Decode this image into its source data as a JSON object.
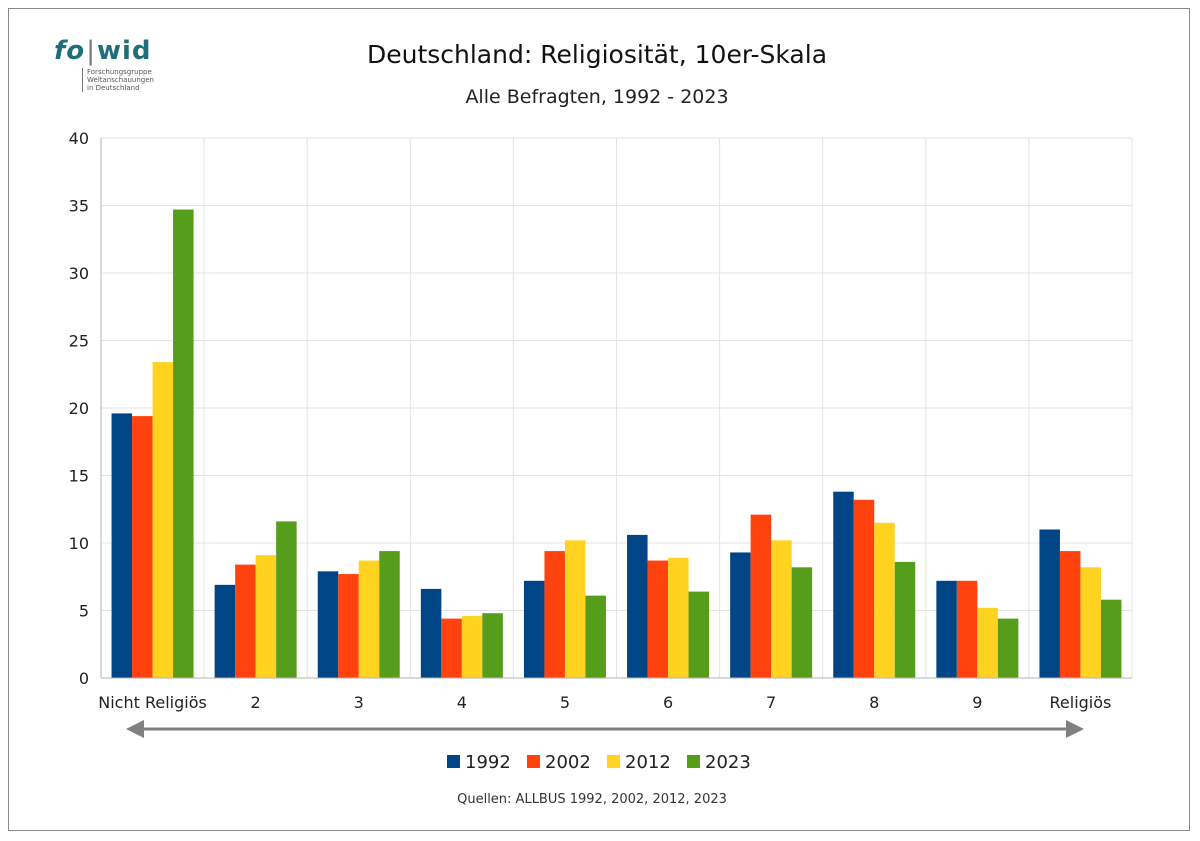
{
  "logo": {
    "brand_left": "fo",
    "brand_right": "wid",
    "tagline": [
      "Forschungsgruppe",
      "Weltanschauungen",
      "in Deutschland"
    ]
  },
  "chart_data": {
    "type": "bar",
    "title": "Deutschland: Religiosität, 10er-Skala",
    "subtitle": "Alle Befragten, 1992 - 2023",
    "xlabel": "",
    "ylabel": "",
    "ylim": [
      0,
      40
    ],
    "yticks": [
      0,
      5,
      10,
      15,
      20,
      25,
      30,
      35,
      40
    ],
    "grid": true,
    "legend_position": "bottom",
    "categories": [
      "Nicht Religiös",
      "2",
      "3",
      "4",
      "5",
      "6",
      "7",
      "8",
      "9",
      "Religiös"
    ],
    "series": [
      {
        "name": "1992",
        "color": "#004586",
        "values": [
          19.6,
          6.9,
          7.9,
          6.6,
          7.2,
          10.6,
          9.3,
          13.8,
          7.2,
          11.0
        ]
      },
      {
        "name": "2002",
        "color": "#ff420e",
        "values": [
          19.4,
          8.4,
          7.7,
          4.4,
          9.4,
          8.7,
          12.1,
          13.2,
          7.2,
          9.4
        ]
      },
      {
        "name": "2012",
        "color": "#ffd320",
        "values": [
          23.4,
          9.1,
          8.7,
          4.6,
          10.2,
          8.9,
          10.2,
          11.5,
          5.2,
          8.2
        ]
      },
      {
        "name": "2023",
        "color": "#579d1c",
        "values": [
          34.7,
          11.6,
          9.4,
          4.8,
          6.1,
          6.4,
          8.2,
          8.6,
          4.4,
          5.8
        ]
      }
    ],
    "source": "Quellen: ALLBUS 1992, 2002, 2012, 2023"
  }
}
